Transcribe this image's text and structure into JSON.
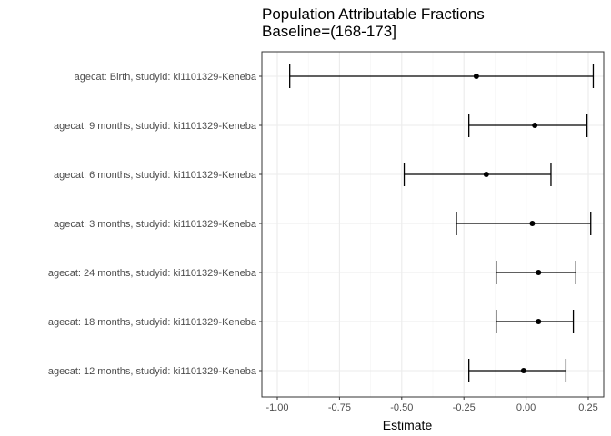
{
  "chart_data": {
    "type": "forest",
    "title": "Population Attributable Fractions",
    "subtitle": "Baseline=(168-173]",
    "xlabel": "Estimate",
    "ylabel": "",
    "xlim": [
      -1.0,
      0.3
    ],
    "xticks": [
      "-1.00",
      "-0.75",
      "-0.50",
      "-0.25",
      "0.00",
      "0.25"
    ],
    "xtick_values": [
      -1.0,
      -0.75,
      -0.5,
      -0.25,
      0.0,
      0.25
    ],
    "grid": true,
    "theme": "bw",
    "colors": {
      "marks": "#000000",
      "grid": "#ebebeb",
      "panel_border": "#333333",
      "tick_text": "#4d4d4d"
    },
    "categories": [
      "agecat: Birth, studyid: ki1101329-Keneba",
      "agecat: 9 months, studyid: ki1101329-Keneba",
      "agecat: 6 months, studyid: ki1101329-Keneba",
      "agecat: 3 months, studyid: ki1101329-Keneba",
      "agecat: 24 months, studyid: ki1101329-Keneba",
      "agecat: 18 months, studyid: ki1101329-Keneba",
      "agecat: 12 months, studyid: ki1101329-Keneba"
    ],
    "estimates": [
      -0.2,
      0.035,
      -0.16,
      0.025,
      0.05,
      0.05,
      -0.01
    ],
    "lower": [
      -0.95,
      -0.23,
      -0.49,
      -0.28,
      -0.12,
      -0.12,
      -0.23
    ],
    "upper": [
      0.27,
      0.245,
      0.1,
      0.26,
      0.2,
      0.19,
      0.16
    ]
  }
}
